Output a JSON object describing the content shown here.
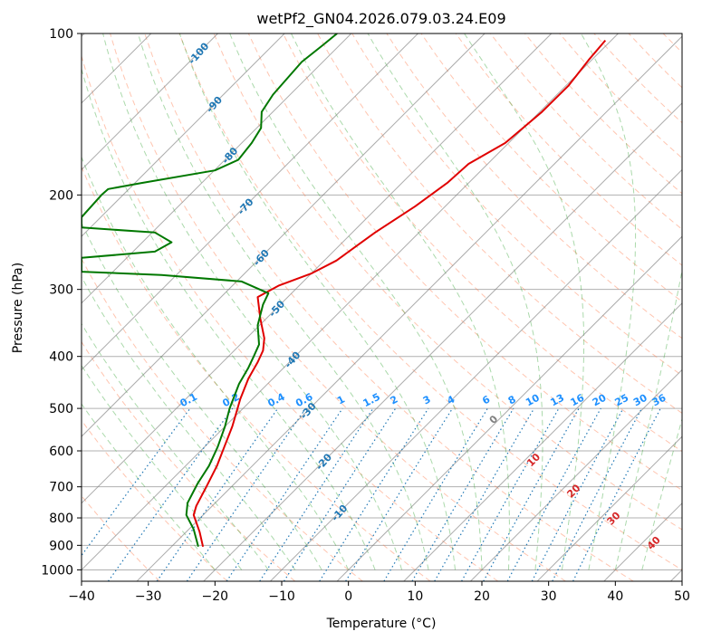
{
  "chart_data": {
    "type": "line",
    "title": "wetPf2_GN04.2026.079.03.24.E09",
    "xlabel": "Temperature (°C)",
    "ylabel": "Pressure (hPa)",
    "xlim": [
      -40,
      50
    ],
    "ylim": [
      1050,
      100
    ],
    "y_scale": "log",
    "grid": true,
    "x_ticks": [
      -40,
      -30,
      -20,
      -10,
      0,
      10,
      20,
      30,
      40,
      50
    ],
    "x_tick_labels": [
      "−40",
      "−30",
      "−20",
      "−10",
      "0",
      "10",
      "20",
      "30",
      "40",
      "50"
    ],
    "y_ticks": [
      100,
      200,
      300,
      400,
      500,
      600,
      700,
      800,
      900,
      1000
    ],
    "y_tick_labels": [
      "100",
      "200",
      "300",
      "400",
      "500",
      "600",
      "700",
      "800",
      "900",
      "1000"
    ],
    "series": [
      {
        "color": "#e00000",
        "x": [
          -21.8,
          -22.3,
          -23.2,
          -22.8,
          -21.3,
          -19.7,
          -18.6,
          -17.4,
          -16.2,
          -15.0,
          -13.6,
          -12.8,
          -12.6,
          -13.2,
          -13.6,
          -10.4,
          -5.5,
          -1.8,
          1.0,
          4.0,
          10.0,
          14.8,
          18.0,
          23.5,
          29.0,
          33.0,
          36.0,
          38.5
        ],
        "y": [
          905,
          850,
          790,
          760,
          700,
          640,
          590,
          540,
          480,
          440,
          410,
          390,
          370,
          340,
          310,
          295,
          280,
          265,
          250,
          235,
          210,
          190,
          175,
          160,
          140,
          125,
          112,
          103
        ]
      },
      {
        "color": "#007800",
        "x": [
          -22.5,
          -23.2,
          -24.3,
          -24.1,
          -22.6,
          -20.9,
          -19.6,
          -18.5,
          -17.8,
          -16.4,
          -15.0,
          -14.2,
          -13.4,
          -13.6,
          -12.8,
          -12.0,
          -16.0,
          -28.0,
          -40.0,
          -40.0,
          -29.0,
          -26.5,
          -29.0,
          -40.0,
          -40.0,
          -37.0,
          -36.0,
          -31.0,
          -20.0,
          -16.5,
          -14.5,
          -13.1,
          -13.0,
          -11.3,
          -7.0,
          -3.8,
          -1.7
        ],
        "y": [
          905,
          840,
          790,
          750,
          690,
          640,
          590,
          540,
          500,
          450,
          420,
          400,
          380,
          350,
          320,
          305,
          290,
          282,
          278,
          262,
          255,
          245,
          235,
          230,
          220,
          200,
          195,
          190,
          180,
          172,
          160,
          150,
          140,
          130,
          113,
          105,
          100
        ]
      }
    ],
    "isotherm_labels": [
      "-100",
      "-90",
      "-80",
      "-70",
      "-60",
      "-50",
      "-40",
      "-30",
      "-20",
      "-10"
    ],
    "mixing_ratio_labels": [
      "0.1",
      "0.2",
      "0.4",
      "0.6",
      "1",
      "1.5",
      "2",
      "3",
      "4",
      "6",
      "8",
      "10",
      "13",
      "16",
      "20",
      "25",
      "30",
      "36"
    ],
    "moist_adiabat_labels": [
      "0",
      "10",
      "20",
      "30",
      "40"
    ],
    "colors": {
      "isotherm": "#808080",
      "isotherm_label": "#1f77b4",
      "dry_adiabat": "#ff7f50",
      "moist_adiabat": "#2ca02c",
      "mixing_ratio": "#1f77b4",
      "mixing_ratio_label": "#1e90ff",
      "moist_label": "#d62728",
      "moist_zero_label": "#808080",
      "horizontal_grid": "#b0b0b0",
      "lcl_curve": "#d2b48c"
    }
  }
}
